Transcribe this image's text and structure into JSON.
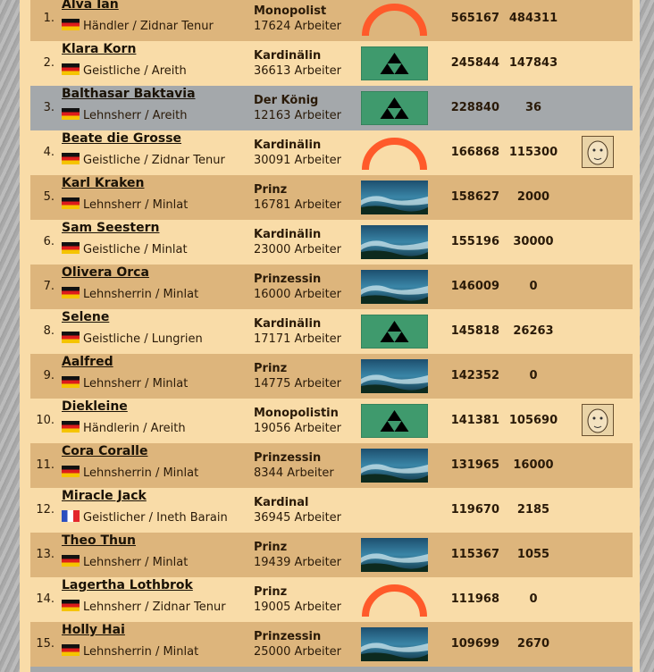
{
  "rows": [
    {
      "rank": "1.",
      "name": "Alva Ian",
      "flag": "de",
      "role": "Händler / Zidnar Tenur",
      "title": "Monopolist",
      "workers": "17624 Arbeiter",
      "emblem": "arc",
      "points": 565167,
      "value2": 484311
    },
    {
      "rank": "2.",
      "name": "Klara Korn",
      "flag": "de",
      "role": "Geistliche / Areith",
      "title": "Kardinälin",
      "workers": "36613 Arbeiter",
      "emblem": "triangle",
      "points": 245844,
      "value2": 147843
    },
    {
      "rank": "3.",
      "name": "Balthasar Baktavia",
      "flag": "de",
      "role": "Lehnsherr / Areith",
      "title": "Der König",
      "workers": "12163 Arbeiter",
      "emblem": "triangle",
      "points": 228840,
      "value2": 36,
      "highlight": true
    },
    {
      "rank": "4.",
      "name": "Beate die Grosse",
      "flag": "de",
      "role": "Geistliche / Zidnar Tenur",
      "title": "Kardinälin",
      "workers": "30091 Arbeiter",
      "emblem": "arc",
      "points": 166868,
      "value2": 115300,
      "avatar": true
    },
    {
      "rank": "5.",
      "name": "Karl Kraken",
      "flag": "de",
      "role": "Lehnsherr / Minlat",
      "title": "Prinz",
      "workers": "16781 Arbeiter",
      "emblem": "landscape",
      "points": 158627,
      "value2": 2000
    },
    {
      "rank": "6.",
      "name": "Sam Seestern",
      "flag": "de",
      "role": "Geistliche / Minlat",
      "title": "Kardinälin",
      "workers": "23000 Arbeiter",
      "emblem": "landscape",
      "points": 155196,
      "value2": 30000
    },
    {
      "rank": "7.",
      "name": "Olivera Orca",
      "flag": "de",
      "role": "Lehnsherrin / Minlat",
      "title": "Prinzessin",
      "workers": "16000 Arbeiter",
      "emblem": "landscape",
      "points": 146009,
      "value2": 0
    },
    {
      "rank": "8.",
      "name": "Selene",
      "flag": "de",
      "role": "Geistliche / Lungrien",
      "title": "Kardinälin",
      "workers": "17171 Arbeiter",
      "emblem": "triangle",
      "points": 145818,
      "value2": 26263
    },
    {
      "rank": "9.",
      "name": "Aalfred",
      "flag": "de",
      "role": "Lehnsherr / Minlat",
      "title": "Prinz",
      "workers": "14775 Arbeiter",
      "emblem": "landscape",
      "points": 142352,
      "value2": 0
    },
    {
      "rank": "10.",
      "name": "Diekleine",
      "flag": "de",
      "role": "Händlerin / Areith",
      "title": "Monopolistin",
      "workers": "19056 Arbeiter",
      "emblem": "triangle",
      "points": 141381,
      "value2": 105690,
      "avatar": true
    },
    {
      "rank": "11.",
      "name": "Cora Coralle",
      "flag": "de",
      "role": "Lehnsherrin / Minlat",
      "title": "Prinzessin",
      "workers": "8344 Arbeiter",
      "emblem": "landscape",
      "points": 131965,
      "value2": 16000
    },
    {
      "rank": "12.",
      "name": "Miracle Jack",
      "flag": "fr",
      "role": "Geistlicher / Ineth Barain",
      "title": "Kardinal",
      "workers": "36945 Arbeiter",
      "points": 119670,
      "value2": 2185
    },
    {
      "rank": "13.",
      "name": "Theo Thun",
      "flag": "de",
      "role": "Lehnsherr / Minlat",
      "title": "Prinz",
      "workers": "19439 Arbeiter",
      "emblem": "landscape",
      "points": 115367,
      "value2": 1055
    },
    {
      "rank": "14.",
      "name": "Lagertha Lothbrok",
      "flag": "de",
      "role": "Lehnsherr / Zidnar Tenur",
      "title": "Prinz",
      "workers": "19005 Arbeiter",
      "emblem": "arc",
      "points": 111968,
      "value2": 0
    },
    {
      "rank": "15.",
      "name": "Holly Hai",
      "flag": "de",
      "role": "Lehnsherrin / Minlat",
      "title": "Prinzessin",
      "workers": "25000 Arbeiter",
      "emblem": "landscape",
      "points": 109699,
      "value2": 2670
    }
  ]
}
